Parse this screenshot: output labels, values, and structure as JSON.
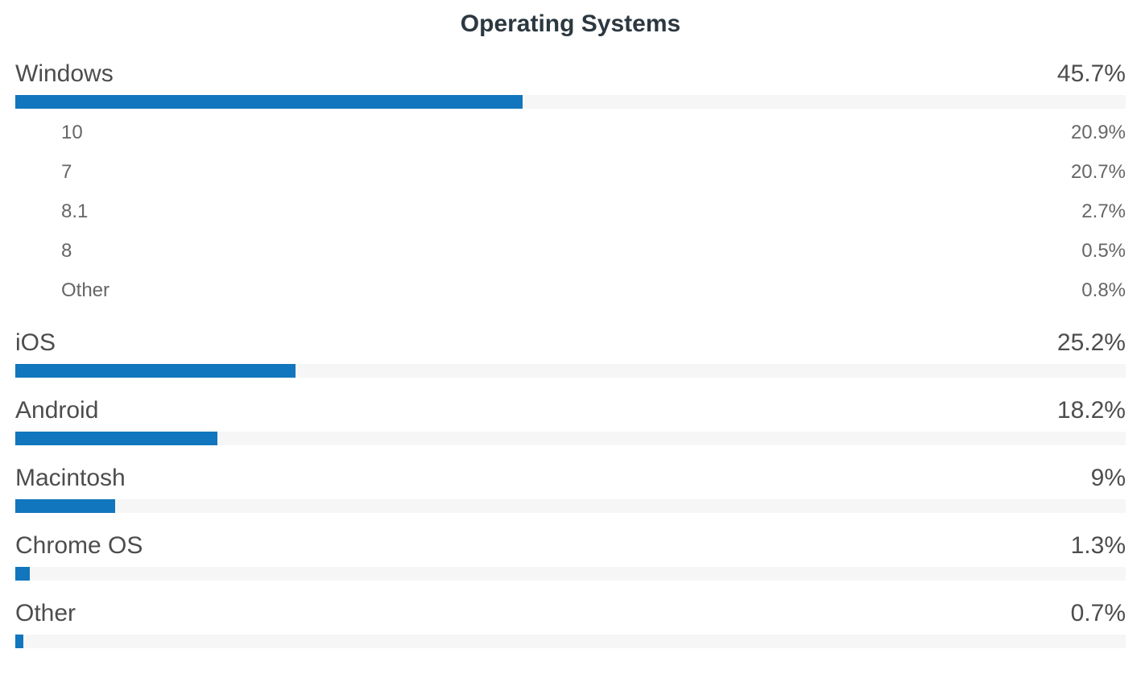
{
  "chart_data": {
    "type": "bar",
    "orientation": "horizontal",
    "title": "Operating Systems",
    "unit": "%",
    "value_range": [
      0,
      100
    ],
    "grid": false,
    "legend": false,
    "bar_color": "#1176bd",
    "track_color": "#f6f6f6",
    "series": [
      {
        "label": "Windows",
        "value": 45.7,
        "display": "45.7%",
        "children": [
          {
            "label": "10",
            "value": 20.9,
            "display": "20.9%"
          },
          {
            "label": "7",
            "value": 20.7,
            "display": "20.7%"
          },
          {
            "label": "8.1",
            "value": 2.7,
            "display": "2.7%"
          },
          {
            "label": "8",
            "value": 0.5,
            "display": "0.5%"
          },
          {
            "label": "Other",
            "value": 0.8,
            "display": "0.8%"
          }
        ]
      },
      {
        "label": "iOS",
        "value": 25.2,
        "display": "25.2%",
        "children": []
      },
      {
        "label": "Android",
        "value": 18.2,
        "display": "18.2%",
        "children": []
      },
      {
        "label": "Macintosh",
        "value": 9,
        "display": "9%",
        "children": []
      },
      {
        "label": "Chrome OS",
        "value": 1.3,
        "display": "1.3%",
        "children": []
      },
      {
        "label": "Other",
        "value": 0.7,
        "display": "0.7%",
        "children": []
      }
    ]
  }
}
